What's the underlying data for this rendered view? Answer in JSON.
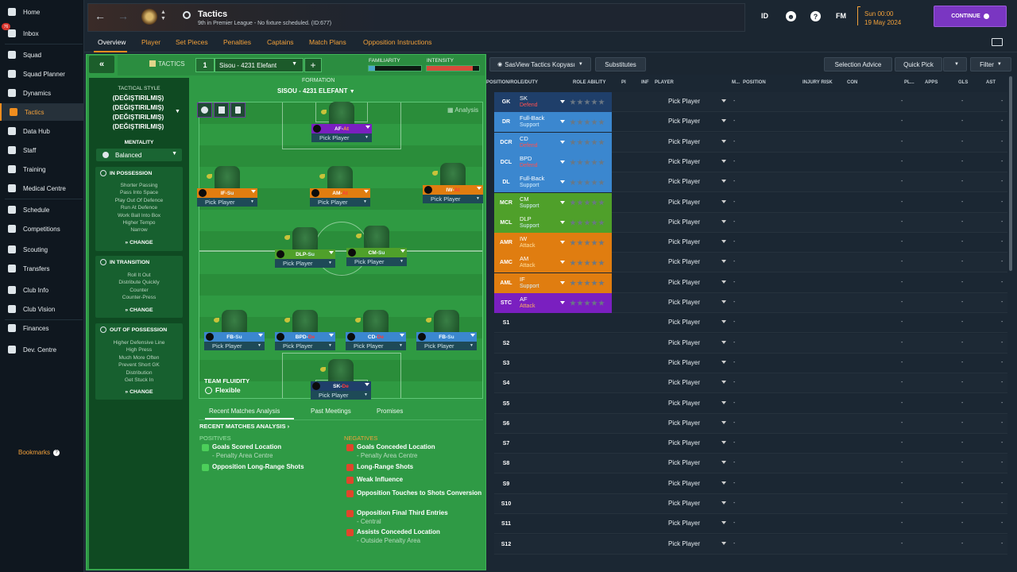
{
  "sidebar": {
    "items": [
      {
        "label": "Home",
        "icon": "home-icon"
      },
      {
        "label": "Inbox",
        "icon": "inbox-icon",
        "badge": "76"
      },
      {
        "label": "Squad",
        "icon": "shirt-icon"
      },
      {
        "label": "Squad Planner",
        "icon": "planner-icon"
      },
      {
        "label": "Dynamics",
        "icon": "dynamics-icon"
      },
      {
        "label": "Tactics",
        "icon": "tactics-icon",
        "active": true
      },
      {
        "label": "Data Hub",
        "icon": "data-hub-icon"
      },
      {
        "label": "Staff",
        "icon": "staff-icon"
      },
      {
        "label": "Training",
        "icon": "training-icon"
      },
      {
        "label": "Medical Centre",
        "icon": "medical-icon"
      },
      {
        "label": "Schedule",
        "icon": "calendar-icon"
      },
      {
        "label": "Competitions",
        "icon": "trophy-icon"
      },
      {
        "label": "Scouting",
        "icon": "scouting-icon"
      },
      {
        "label": "Transfers",
        "icon": "transfers-icon"
      },
      {
        "label": "Club Info",
        "icon": "shield-icon"
      },
      {
        "label": "Club Vision",
        "icon": "vision-icon"
      },
      {
        "label": "Finances",
        "icon": "finances-icon"
      },
      {
        "label": "Dev. Centre",
        "icon": "dev-centre-icon"
      }
    ],
    "bookmarks": "Bookmarks"
  },
  "header": {
    "title": "Tactics",
    "subtitle": "9th in Premier League - No fixture scheduled. (ID:677)",
    "id_label": "ID",
    "fm_label": "FM",
    "date_line1": "Sun 00:00",
    "date_line2": "19 May 2024",
    "continue_label": "CONTINUE"
  },
  "subtabs": [
    "Overview",
    "Player",
    "Set Pieces",
    "Penalties",
    "Captains",
    "Match Plans",
    "Opposition Instructions"
  ],
  "tactics_bar": {
    "back": "«",
    "label": "TACTICS",
    "slot": "1",
    "tactic_name": "Sisou - 4231 Elefant",
    "add": "+",
    "familiarity_label": "FAMILIARITY",
    "familiarity_level": 0.12,
    "intensity_label": "INTENSITY",
    "intensity_level": 0.88
  },
  "tactical_style": {
    "heading": "TACTICAL STYLE",
    "name_lines": [
      "(DEĞIŞTIRILMIŞ)",
      "(DEĞIŞTIRILMIŞ)",
      "(DEĞIŞTIRILMIŞ)",
      "(DEĞIŞTIRILMIŞ)"
    ],
    "mentality_heading": "MENTALITY",
    "mentality": "Balanced"
  },
  "in_possession": {
    "title": "IN POSSESSION",
    "items": [
      "Shorter Passing",
      "Pass Into Space",
      "Play Out Of Defence",
      "Run At Defence",
      "Work Ball Into Box",
      "Higher Tempo",
      "Narrow"
    ],
    "change": "CHANGE"
  },
  "in_transition": {
    "title": "IN TRANSITION",
    "items": [
      "Roll It Out",
      "Distribute Quickly",
      "Counter",
      "Counter-Press"
    ],
    "change": "CHANGE"
  },
  "out_of_possession": {
    "title": "OUT OF POSSESSION",
    "items": [
      "Higher Defensive Line",
      "High Press",
      "Much More Often",
      "Prevent Short GK",
      "Distribution",
      "Get Stuck In"
    ],
    "change": "CHANGE"
  },
  "formation": {
    "heading": "FORMATION",
    "name": "SISOU - 4231 ELEFANT",
    "analysis": "Analysis",
    "pick_player": "Pick Player",
    "players": [
      {
        "role": "AF",
        "duty": "At",
        "color": "#7a1fc0",
        "duty_color": "#ff9a3a"
      },
      {
        "role": "IF",
        "duty": "Su",
        "color": "#e07d10",
        "duty_color": "#d6f0ff"
      },
      {
        "role": "AM",
        "duty": "At",
        "color": "#e07d10",
        "duty_color": "#ff3a3a"
      },
      {
        "role": "IW",
        "duty": "At",
        "color": "#e07d10",
        "duty_color": "#ff3a3a"
      },
      {
        "role": "DLP",
        "duty": "Su",
        "color": "#4fa02a",
        "duty_color": "#d6f0ff"
      },
      {
        "role": "CM",
        "duty": "Su",
        "color": "#4fa02a",
        "duty_color": "#d6f0ff"
      },
      {
        "role": "FB",
        "duty": "Su",
        "color": "#3b87cf",
        "duty_color": "#d6f0ff"
      },
      {
        "role": "BPD",
        "duty": "De",
        "color": "#3b87cf",
        "duty_color": "#ff3a3a"
      },
      {
        "role": "CD",
        "duty": "De",
        "color": "#3b87cf",
        "duty_color": "#ff3a3a"
      },
      {
        "role": "FB",
        "duty": "Su",
        "color": "#3b87cf",
        "duty_color": "#d6f0ff"
      },
      {
        "role": "SK",
        "duty": "De",
        "color": "#1f3f6a",
        "duty_color": "#ff3a3a"
      }
    ],
    "fluidity_label": "TEAM FLUIDITY",
    "fluidity": "Flexible"
  },
  "analysis": {
    "tabs": [
      "Recent Matches Analysis",
      "Past Meetings",
      "Promises"
    ],
    "heading": "RECENT MATCHES ANALYSIS",
    "positives_label": "POSITIVES",
    "negatives_label": "NEGATIVES",
    "positives": [
      {
        "title": "Goals Scored Location",
        "sub": "- Penalty Area Centre"
      },
      {
        "title": "Opposition Long-Range Shots",
        "sub": ""
      }
    ],
    "negatives": [
      {
        "title": "Goals Conceded Location",
        "sub": "- Penalty Area Centre"
      },
      {
        "title": "Long-Range Shots",
        "sub": ""
      },
      {
        "title": "Weak Influence",
        "sub": ""
      },
      {
        "title": "Opposition Touches to Shots Conversion",
        "sub": ""
      },
      {
        "title": "Opposition Final Third Entries",
        "sub": "- Central"
      },
      {
        "title": "Assists Conceded Location",
        "sub": "- Outside Penalty Area"
      }
    ]
  },
  "right_panel": {
    "view_select": "SasView Tactics Kopyası",
    "substitutes": "Substitutes",
    "selection_advice": "Selection Advice",
    "quick_pick": "Quick Pick",
    "filter": "Filter",
    "columns": [
      "POSITION/ROLE/DUTY",
      "ROLE ABILITY",
      "PI",
      "INF",
      "PLAYER",
      "M...",
      "POSITION",
      "INJURY RISK",
      "CON",
      "PL...",
      "APPS",
      "GLS",
      "AST"
    ],
    "pick_player": "Pick Player",
    "dash": "-",
    "rows": [
      {
        "pos": "GK",
        "role": "SK",
        "duty": "Defend",
        "color": "#1f3f6a",
        "duty_color": "#ff5050"
      },
      {
        "pos": "DR",
        "role": "Full-Back",
        "duty": "Support",
        "color": "#3b87cf",
        "duty_color": "#d6f0ff"
      },
      {
        "pos": "DCR",
        "role": "CD",
        "duty": "Defend",
        "color": "#3b87cf",
        "duty_color": "#ff5050"
      },
      {
        "pos": "DCL",
        "role": "BPD",
        "duty": "Defend",
        "color": "#3b87cf",
        "duty_color": "#ff5050"
      },
      {
        "pos": "DL",
        "role": "Full-Back",
        "duty": "Support",
        "color": "#3b87cf",
        "duty_color": "#d6f0ff"
      },
      {
        "pos": "MCR",
        "role": "CM",
        "duty": "Support",
        "color": "#4fa02a",
        "duty_color": "#d6f0ff"
      },
      {
        "pos": "MCL",
        "role": "DLP",
        "duty": "Support",
        "color": "#4fa02a",
        "duty_color": "#d6f0ff"
      },
      {
        "pos": "AMR",
        "role": "IW",
        "duty": "Attack",
        "color": "#e07d10",
        "duty_color": "#ffe0a0"
      },
      {
        "pos": "AMC",
        "role": "AM",
        "duty": "Attack",
        "color": "#e07d10",
        "duty_color": "#ffe0a0"
      },
      {
        "pos": "AML",
        "role": "IF",
        "duty": "Support",
        "color": "#e07d10",
        "duty_color": "#d6f0ff"
      },
      {
        "pos": "STC",
        "role": "AF",
        "duty": "Attack",
        "color": "#7a1fc0",
        "duty_color": "#ffb060"
      },
      {
        "pos": "S1"
      },
      {
        "pos": "S2"
      },
      {
        "pos": "S3"
      },
      {
        "pos": "S4"
      },
      {
        "pos": "S5"
      },
      {
        "pos": "S6"
      },
      {
        "pos": "S7"
      },
      {
        "pos": "S8"
      },
      {
        "pos": "S9"
      },
      {
        "pos": "S10"
      },
      {
        "pos": "S11"
      },
      {
        "pos": "S12"
      }
    ]
  }
}
